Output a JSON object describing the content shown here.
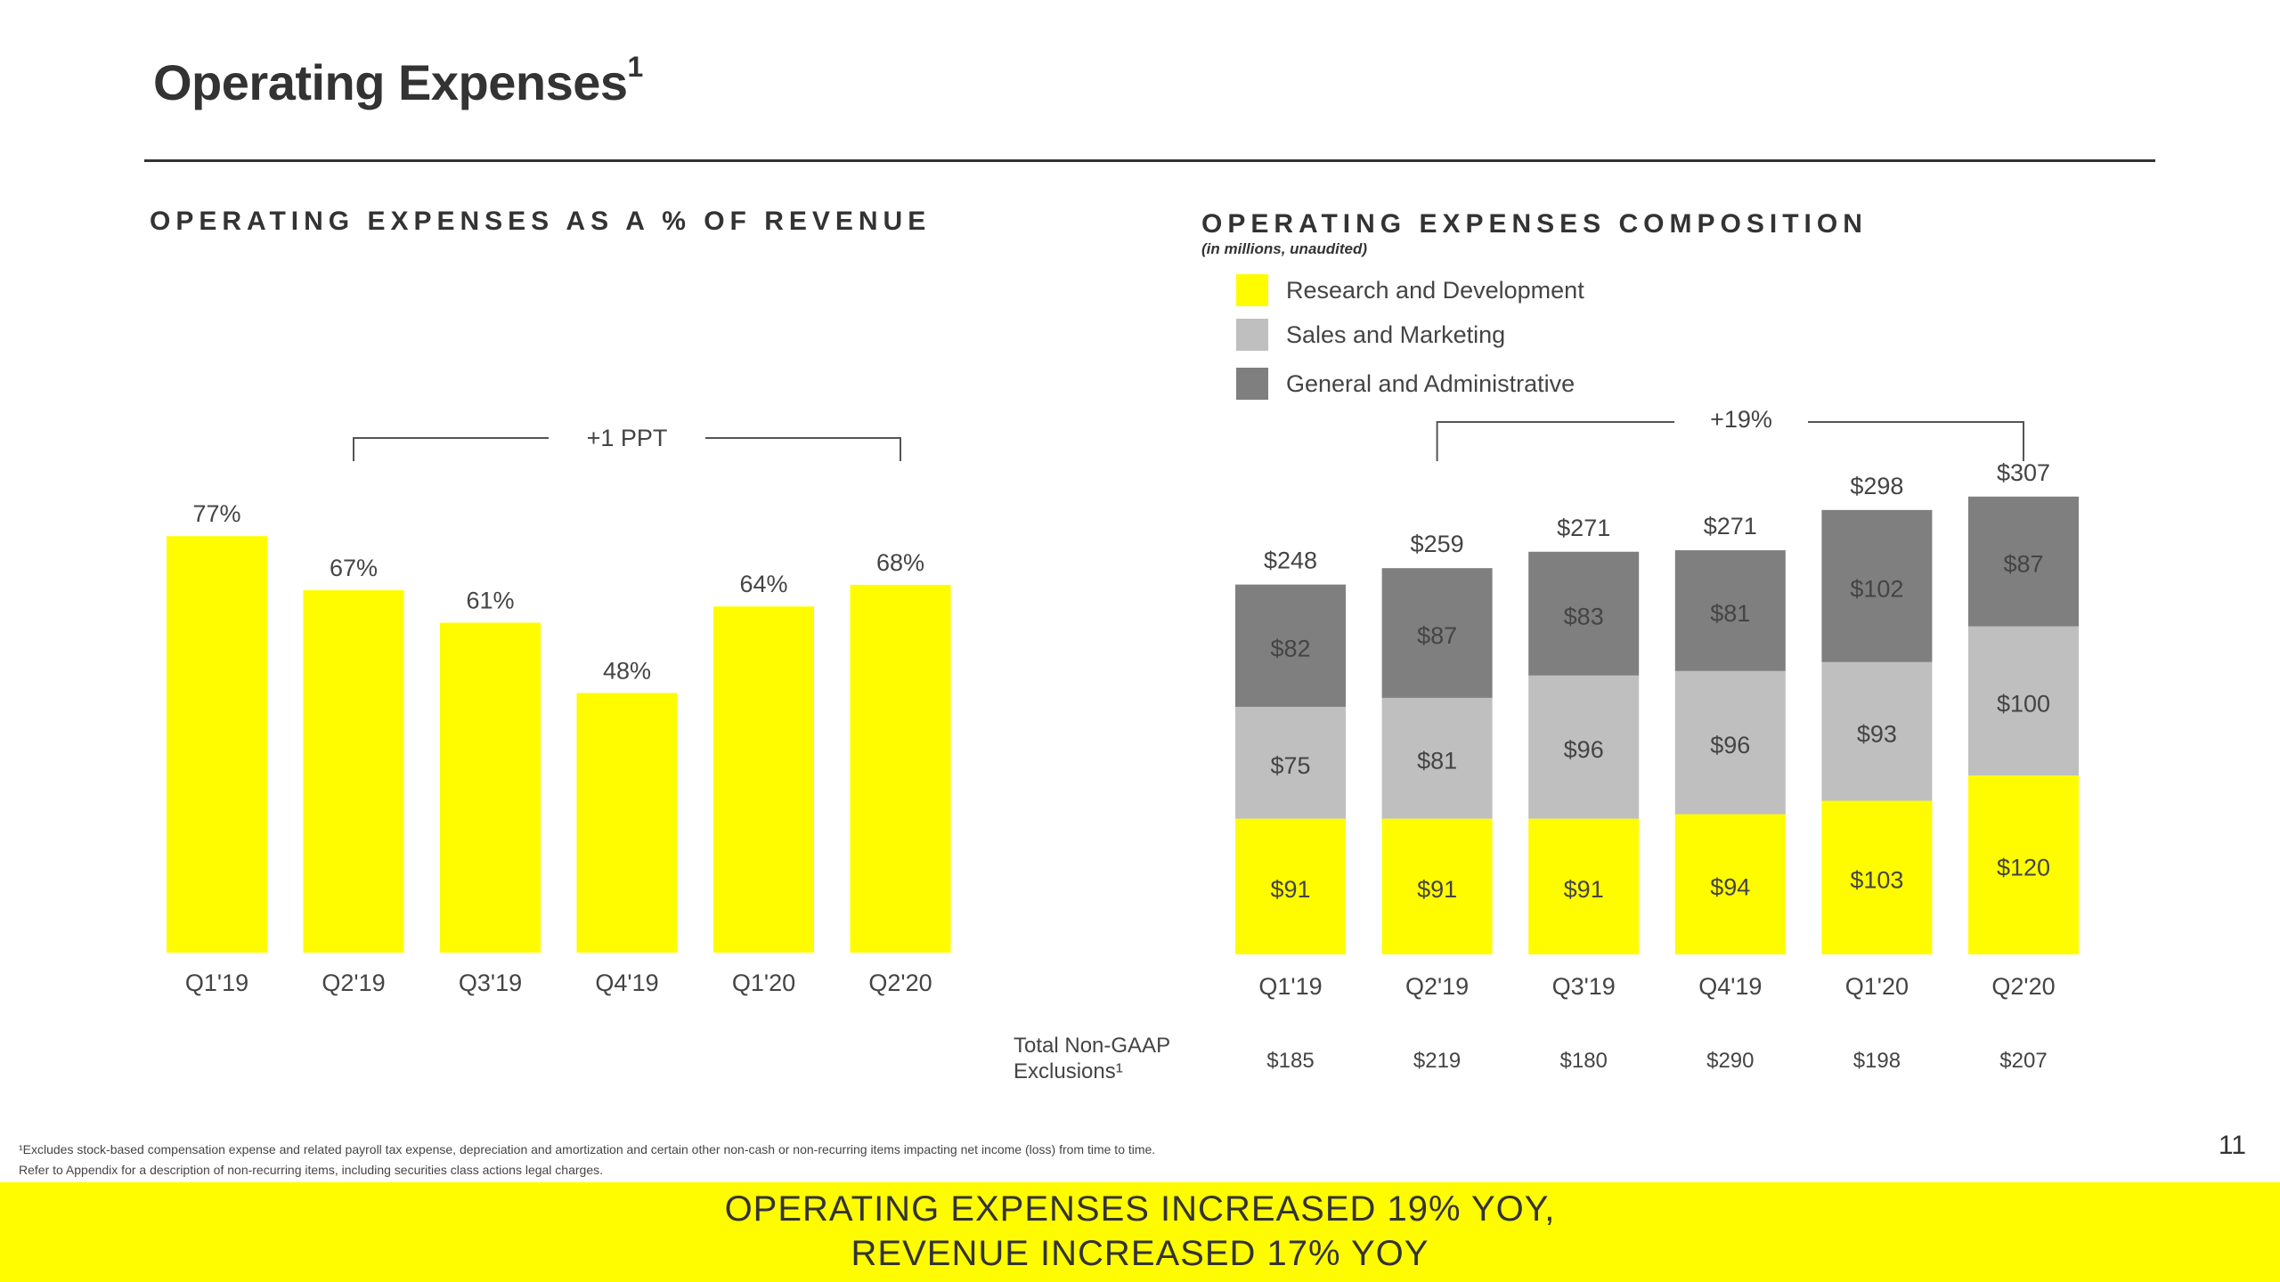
{
  "page": {
    "title": "Operating Expenses",
    "title_sup": "1",
    "page_number": "11"
  },
  "colors": {
    "yellow": "#FFFC00",
    "light_gray": "#BFBFBF",
    "dark_gray": "#7F7F7F",
    "text": "#333333"
  },
  "left_chart": {
    "section_title": "OPERATING EXPENSES AS A % OF REVENUE",
    "bracket_label": "+1 PPT"
  },
  "right_chart": {
    "section_title": "OPERATING EXPENSES COMPOSITION",
    "subtitle": "(in millions, unaudited)",
    "bracket_label": "+19%",
    "legend": [
      {
        "label": "Research and Development",
        "color": "#FFFC00"
      },
      {
        "label": "Sales and Marketing",
        "color": "#BFBFBF"
      },
      {
        "label": "General and Administrative",
        "color": "#7F7F7F"
      }
    ],
    "nongaap_label_line1": "Total Non-GAAP",
    "nongaap_label_line2": "Exclusions¹"
  },
  "chart_data": [
    {
      "type": "bar",
      "title": "OPERATING EXPENSES AS A % OF REVENUE",
      "categories": [
        "Q1'19",
        "Q2'19",
        "Q3'19",
        "Q4'19",
        "Q1'20",
        "Q2'20"
      ],
      "values": [
        77,
        67,
        61,
        48,
        64,
        68
      ],
      "value_labels": [
        "77%",
        "67%",
        "61%",
        "48%",
        "64%",
        "68%"
      ],
      "unit": "%",
      "ylim": [
        0,
        100
      ],
      "annotation": "+1 PPT",
      "color": "#FFFC00"
    },
    {
      "type": "bar",
      "stacked": true,
      "title": "OPERATING EXPENSES COMPOSITION",
      "subtitle": "(in millions, unaudited)",
      "categories": [
        "Q1'19",
        "Q2'19",
        "Q3'19",
        "Q4'19",
        "Q1'20",
        "Q2'20"
      ],
      "series": [
        {
          "name": "Research and Development",
          "color": "#FFFC00",
          "values": [
            91,
            91,
            91,
            94,
            103,
            120
          ],
          "labels": [
            "$91",
            "$91",
            "$91",
            "$94",
            "$103",
            "$120"
          ]
        },
        {
          "name": "Sales and Marketing",
          "color": "#BFBFBF",
          "values": [
            75,
            81,
            96,
            96,
            93,
            100
          ],
          "labels": [
            "$75",
            "$81",
            "$96",
            "$96",
            "$93",
            "$100"
          ]
        },
        {
          "name": "General and Administrative",
          "color": "#7F7F7F",
          "values": [
            82,
            87,
            83,
            81,
            102,
            87
          ],
          "labels": [
            "$82",
            "$87",
            "$83",
            "$81",
            "$102",
            "$87"
          ]
        }
      ],
      "totals": [
        248,
        259,
        271,
        271,
        298,
        307
      ],
      "total_labels": [
        "$248",
        "$259",
        "$271",
        "$271",
        "$298",
        "$307"
      ],
      "non_gaap_exclusions": [
        "$185",
        "$219",
        "$180",
        "$290",
        "$198",
        "$207"
      ],
      "annotation": "+19%",
      "ylim": [
        0,
        330
      ]
    }
  ],
  "footnotes": {
    "line1": "¹Excludes stock-based compensation expense and related payroll tax expense, depreciation and amortization and certain other non-cash or non-recurring items impacting net income (loss) from time to time.",
    "line2": "Refer to Appendix for a description of non-recurring items, including securities class actions legal charges."
  },
  "banner": {
    "line1": "OPERATING EXPENSES INCREASED 19% YOY,",
    "line2": "REVENUE INCREASED 17% YOY"
  }
}
